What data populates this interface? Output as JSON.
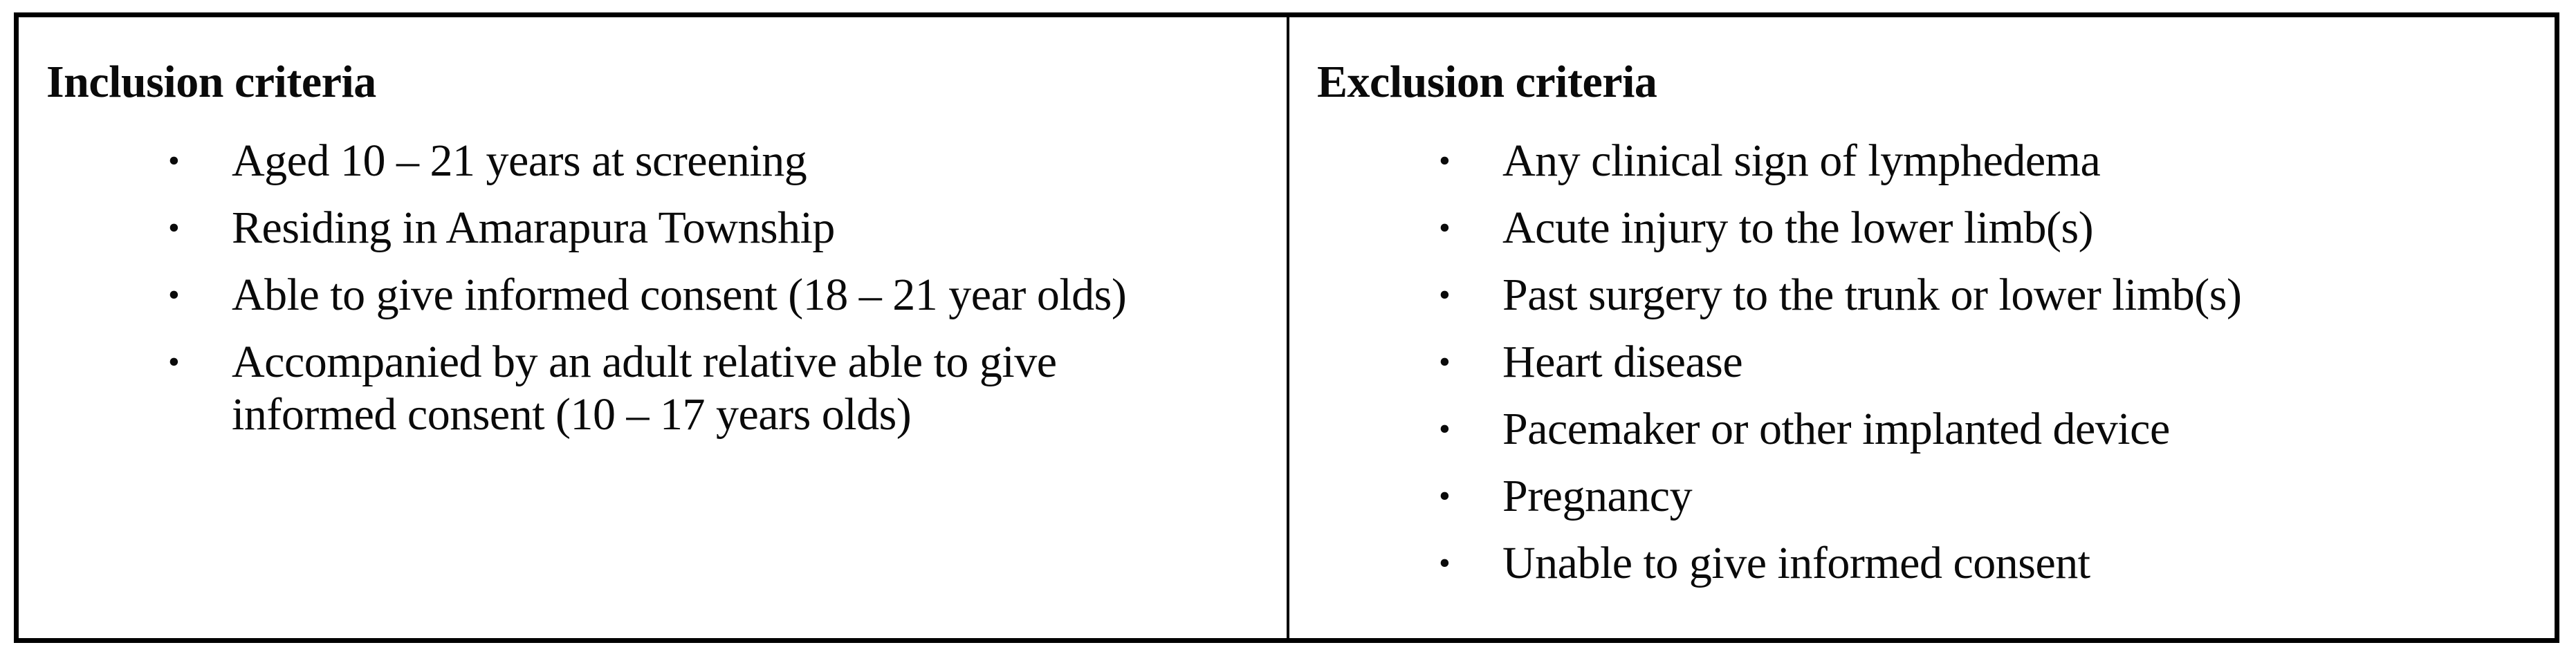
{
  "glyphs": {
    "bullet": "•"
  },
  "colors": {
    "background": "#ffffff",
    "border": "#000000",
    "text": "#0a0a0a"
  },
  "table": {
    "columns": [
      {
        "header": "Inclusion criteria",
        "items": [
          "Aged 10 – 21 years at screening",
          "Residing in Amarapura Township",
          "Able to give informed consent (18 – 21 year olds)",
          "Accompanied by an adult relative able to give informed consent (10 – 17 years olds)"
        ]
      },
      {
        "header": "Exclusion criteria",
        "items": [
          "Any clinical sign of lymphedema",
          "Acute injury to the lower limb(s)",
          "Past surgery to the trunk or lower limb(s)",
          "Heart disease",
          "Pacemaker or other implanted device",
          "Pregnancy",
          "Unable to give informed consent"
        ]
      }
    ]
  }
}
